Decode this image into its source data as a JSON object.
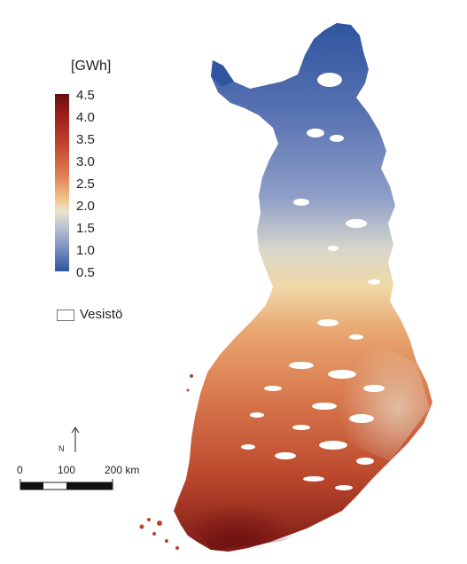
{
  "legend": {
    "unit": "[GWh]",
    "ticks": [
      "4.5",
      "4.0",
      "3.5",
      "3.0",
      "2.5",
      "2.0",
      "1.5",
      "1.0",
      "0.5"
    ],
    "water_label": "Vesistö",
    "colors": {
      "high": "#6a0f12",
      "mid_high": "#e07b4f",
      "mid": "#ece3c8",
      "mid_low": "#7f93c0",
      "low": "#2f55a0"
    }
  },
  "north": {
    "label": "N"
  },
  "scale": {
    "labels": [
      "0",
      "100",
      "200 km"
    ]
  }
}
